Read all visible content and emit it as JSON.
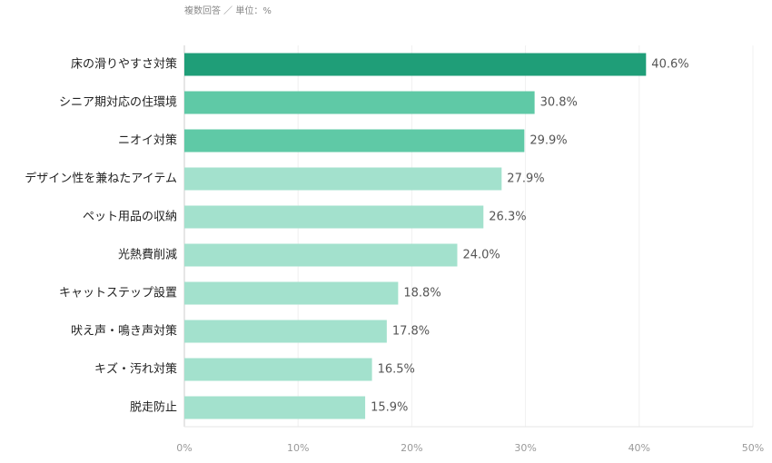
{
  "chart_data": {
    "type": "bar",
    "orientation": "horizontal",
    "subtitle": "複数回答 ／ 単位：%",
    "categories": [
      "床の滑りやすさ対策",
      "シニア期対応の住環境",
      "ニオイ対策",
      "デザイン性を兼ねたアイテム",
      "ペット用品の収納",
      "光熱費削減",
      "キャットステップ設置",
      "吠え声・鳴き声対策",
      "キズ・汚れ対策",
      "脱走防止"
    ],
    "values": [
      40.6,
      30.8,
      29.9,
      27.9,
      26.3,
      24.0,
      18.8,
      17.8,
      16.5,
      15.9
    ],
    "value_labels": [
      "40.6%",
      "30.8%",
      "29.9%",
      "27.9%",
      "26.3%",
      "24.0%",
      "18.8%",
      "17.8%",
      "16.5%",
      "15.9%"
    ],
    "colors": [
      "#1f9e78",
      "#5fc9a6",
      "#5fc9a6",
      "#a3e1cd",
      "#a3e1cd",
      "#a3e1cd",
      "#a3e1cd",
      "#a3e1cd",
      "#a3e1cd",
      "#a3e1cd"
    ],
    "xlim": [
      0,
      50
    ],
    "xticks": [
      {
        "value": 0,
        "label": "0%"
      },
      {
        "value": 10,
        "label": "10%"
      },
      {
        "value": 20,
        "label": "20%"
      },
      {
        "value": 30,
        "label": "30%"
      },
      {
        "value": 40,
        "label": "40%"
      },
      {
        "value": 50,
        "label": "50%"
      }
    ],
    "grid": true
  }
}
